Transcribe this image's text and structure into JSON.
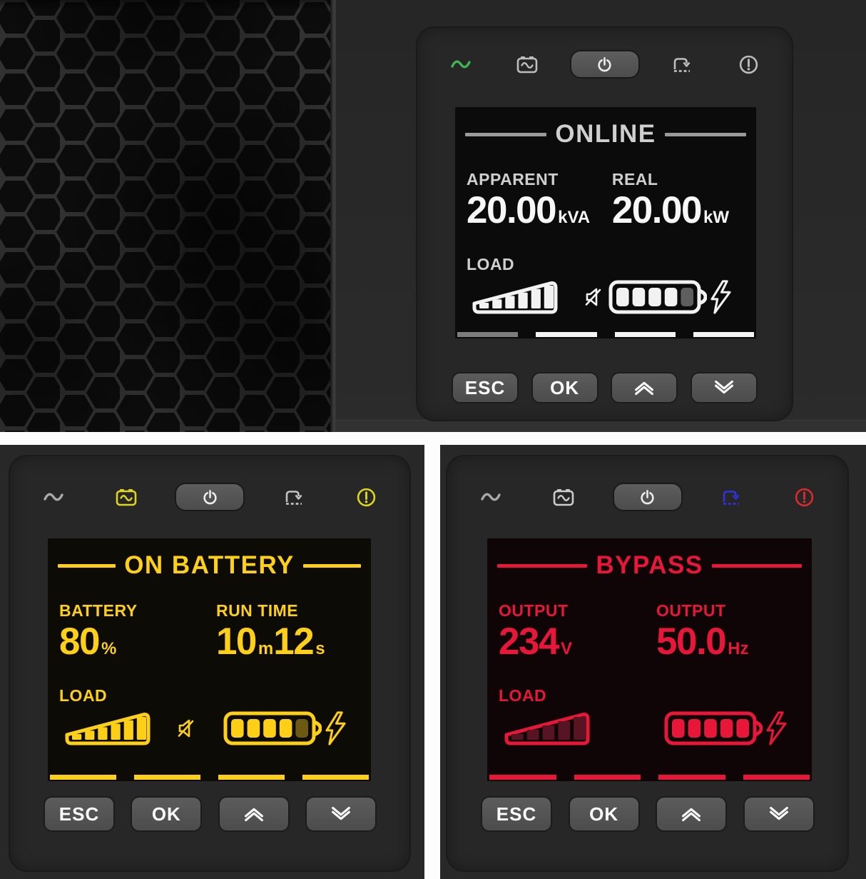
{
  "panels": [
    {
      "id": "online",
      "title": "ONLINE",
      "accent": "#cfcfcf",
      "value_color": "#f7f7f7",
      "icon_color": "#f2f2f2",
      "screen_bg": "#0b0b0b",
      "leds": {
        "sine": "#3fb54d",
        "battery": "#bdbdbd",
        "power": "#ececec",
        "bypass": "#bdbdbd",
        "alert": "#bdbdbd"
      },
      "metrics": [
        {
          "label": "APPARENT",
          "value": "20.00",
          "unit": "kVA"
        },
        {
          "label": "REAL",
          "value": "20.00",
          "unit": "kW"
        }
      ],
      "load_label": "LOAD",
      "has_mute_icon": true,
      "load_bars": {
        "total": 6,
        "lit": 6,
        "lit_color": "#f2f2f2",
        "dim_color": "#454545"
      },
      "battery_cells": {
        "total": 5,
        "lit": 4,
        "lit_color": "#f2f2f2",
        "dim_color": "#5e5e5e"
      },
      "tabs": [
        "#7c7c7c",
        "#f5f5f5",
        "#f5f5f5",
        "#f5f5f5"
      ],
      "buttons": {
        "esc": "ESC",
        "ok": "OK"
      }
    },
    {
      "id": "on-battery",
      "title": "ON BATTERY",
      "accent": "#fdd017",
      "value_color": "#fdd017",
      "icon_color": "#fdd017",
      "screen_bg": "#0d0b05",
      "leds": {
        "sine": "#a9a9a9",
        "battery": "#e0d51e",
        "power": "#ececec",
        "bypass": "#c2c2c2",
        "alert": "#ddd51e"
      },
      "metrics": [
        {
          "label": "BATTERY",
          "value": "80",
          "unit": "%"
        },
        {
          "label": "RUN TIME",
          "parts": [
            {
              "v": "10",
              "u": "m"
            },
            {
              "v": "12",
              "u": "s"
            }
          ]
        }
      ],
      "load_label": "LOAD",
      "has_mute_icon": true,
      "load_bars": {
        "total": 6,
        "lit": 6,
        "lit_color": "#fdd017",
        "dim_color": "#6d5a12"
      },
      "battery_cells": {
        "total": 5,
        "lit": 4,
        "lit_color": "#fdd017",
        "dim_color": "#6d5a12"
      },
      "tabs": [
        "#fdd017",
        "#fdd017",
        "#fdd017",
        "#fdd017"
      ],
      "buttons": {
        "esc": "ESC",
        "ok": "OK"
      }
    },
    {
      "id": "bypass",
      "title": "BYPASS",
      "accent": "#e8173a",
      "value_color": "#e8173a",
      "icon_color": "#e8173a",
      "screen_bg": "#0f0506",
      "leds": {
        "sine": "#a9a9a9",
        "battery": "#cccccc",
        "power": "#ececec",
        "bypass": "#3032e0",
        "alert": "#d92b2b"
      },
      "metrics": [
        {
          "label": "OUTPUT",
          "value": "234",
          "unit": "V"
        },
        {
          "label": "OUTPUT",
          "value": "50.0",
          "unit": "Hz"
        }
      ],
      "load_label": "LOAD",
      "has_mute_icon": false,
      "load_bars": {
        "total": 5,
        "lit": 0,
        "lit_color": "#e8173a",
        "dim_color": "#571422"
      },
      "battery_cells": {
        "total": 5,
        "lit": 5,
        "lit_color": "#e8173a",
        "dim_color": "#571422"
      },
      "tabs": [
        "#e8173a",
        "#e8173a",
        "#e8173a",
        "#e8173a"
      ],
      "buttons": {
        "esc": "ESC",
        "ok": "OK"
      }
    }
  ],
  "icons": {
    "led_row": [
      "sine-wave-icon",
      "battery-wave-icon",
      "power-icon",
      "bypass-icon",
      "alert-icon"
    ],
    "screen": [
      "load-ramp-icon",
      "mute-speaker-icon",
      "battery-gauge-icon",
      "lightning-bolt-icon"
    ],
    "keys": [
      "chevron-up-icon",
      "chevron-down-icon"
    ]
  }
}
